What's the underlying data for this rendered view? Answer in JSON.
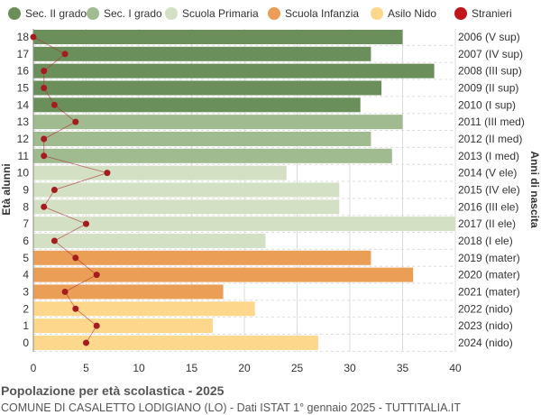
{
  "chart_data": {
    "type": "bar",
    "orientation": "horizontal",
    "title": "Popolazione per età scolastica - 2025",
    "subtitle": "COMUNE DI CASALETTO LODIGIANO (LO) - Dati ISTAT 1° gennaio 2025 - TUTTITALIA.IT",
    "ylabel": "Età alunni",
    "ylabel_right": "Anni di nascita",
    "xlim": [
      0,
      40
    ],
    "xticks": [
      0,
      5,
      10,
      15,
      20,
      25,
      30,
      35,
      40
    ],
    "grid": true,
    "legend_position": "top",
    "legend": [
      {
        "name": "Sec. II grado",
        "color": "#6b8f5a"
      },
      {
        "name": "Sec. I grado",
        "color": "#9fbb8f"
      },
      {
        "name": "Scuola Primaria",
        "color": "#d3e0c4"
      },
      {
        "name": "Scuola Infanzia",
        "color": "#eb9e56"
      },
      {
        "name": "Asilo Nido",
        "color": "#fdd78c"
      },
      {
        "name": "Stranieri",
        "color": "#c0161b"
      }
    ],
    "ages": [
      18,
      17,
      16,
      15,
      14,
      13,
      12,
      11,
      10,
      9,
      8,
      7,
      6,
      5,
      4,
      3,
      2,
      1,
      0
    ],
    "birth_years": [
      "2006 (V sup)",
      "2007 (IV sup)",
      "2008 (III sup)",
      "2009 (II sup)",
      "2010 (I sup)",
      "2011 (III med)",
      "2012 (II med)",
      "2013 (I med)",
      "2014 (V ele)",
      "2015 (IV ele)",
      "2016 (III ele)",
      "2017 (II ele)",
      "2018 (I ele)",
      "2019 (mater)",
      "2020 (mater)",
      "2021 (mater)",
      "2022 (nido)",
      "2023 (nido)",
      "2024 (nido)"
    ],
    "groups": [
      0,
      0,
      0,
      0,
      0,
      1,
      1,
      1,
      2,
      2,
      2,
      2,
      2,
      3,
      3,
      3,
      4,
      4,
      4
    ],
    "values": [
      35,
      32,
      38,
      33,
      31,
      35,
      32,
      34,
      24,
      29,
      29,
      40,
      22,
      32,
      36,
      18,
      21,
      17,
      27
    ],
    "stranieri": [
      0,
      3,
      1,
      1,
      2,
      4,
      1,
      1,
      7,
      2,
      1,
      5,
      2,
      4,
      6,
      3,
      4,
      6,
      5
    ]
  }
}
